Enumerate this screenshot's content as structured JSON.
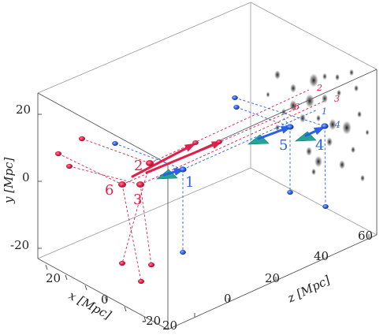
{
  "chart_data": {
    "type": "scatter",
    "projection": "3d",
    "title": "",
    "axes": {
      "x": {
        "label": "x [Mpc]",
        "ticks": [
          20,
          0,
          -20
        ]
      },
      "y": {
        "label": "y [Mpc]",
        "ticks": [
          20,
          0,
          -20
        ]
      },
      "z": {
        "label": "z [Mpc]",
        "ticks": [
          0,
          20,
          40,
          60
        ]
      }
    },
    "grid": false,
    "box": true,
    "colors": {
      "red_group": "#e0204a",
      "blue_group": "#2a5fe6",
      "observer_marker": "#22a693",
      "box_edge": "#555555"
    },
    "red_group": {
      "labels_near": [
        "2",
        "6",
        "3"
      ],
      "labels_far": [
        "2",
        "6",
        "3"
      ]
    },
    "blue_group": {
      "labels_near": [
        "1",
        "5",
        "4"
      ],
      "labels_far": [
        "1",
        "4"
      ]
    }
  }
}
